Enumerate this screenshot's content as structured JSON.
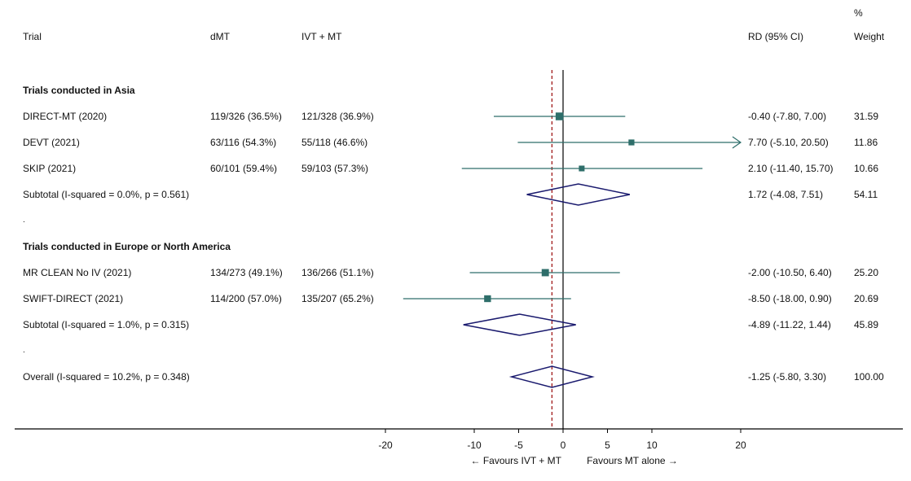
{
  "headers": {
    "trial": "Trial",
    "dmt": "dMT",
    "ivt": "IVT + MT",
    "rd": "RD (95% CI)",
    "pct": "%",
    "weight": "Weight"
  },
  "groups": [
    {
      "title": "Trials conducted in Asia",
      "rows": [
        {
          "trial": "DIRECT-MT (2020)",
          "dmt": "119/326 (36.5%)",
          "ivt": "121/328 (36.9%)",
          "rd_text": "-0.40 (-7.80, 7.00)",
          "weight_text": "31.59"
        },
        {
          "trial": "DEVT (2021)",
          "dmt": "63/116 (54.3%)",
          "ivt": "55/118 (46.6%)",
          "rd_text": "7.70 (-5.10, 20.50)",
          "weight_text": "11.86"
        },
        {
          "trial": "SKIP (2021)",
          "dmt": "60/101 (59.4%)",
          "ivt": "59/103 (57.3%)",
          "rd_text": "2.10 (-11.40, 15.70)",
          "weight_text": "10.66"
        }
      ],
      "subtotal": {
        "label": "Subtotal  (I-squared = 0.0%, p = 0.561)",
        "rd_text": "1.72 (-4.08, 7.51)",
        "weight_text": "54.11"
      },
      "dot": "."
    },
    {
      "title": "Trials conducted in Europe or North America",
      "rows": [
        {
          "trial": "MR CLEAN No IV (2021)",
          "dmt": "134/273 (49.1%)",
          "ivt": "136/266 (51.1%)",
          "rd_text": "-2.00 (-10.50, 6.40)",
          "weight_text": "25.20"
        },
        {
          "trial": "SWIFT-DIRECT (2021)",
          "dmt": "114/200 (57.0%)",
          "ivt": "135/207 (65.2%)",
          "rd_text": "-8.50 (-18.00, 0.90)",
          "weight_text": "20.69"
        }
      ],
      "subtotal": {
        "label": "Subtotal  (I-squared = 1.0%, p = 0.315)",
        "rd_text": "-4.89 (-11.22, 1.44)",
        "weight_text": "45.89"
      },
      "dot": "."
    }
  ],
  "overall": {
    "label": "Overall  (I-squared = 10.2%, p = 0.348)",
    "rd_text": "-1.25 (-5.80, 3.30)",
    "weight_text": "100.00"
  },
  "axis": {
    "ticks": [
      "-20",
      "-10",
      "-5",
      "0",
      "5",
      "10",
      "20"
    ],
    "favours_left": "← Favours IVT + MT",
    "favours_right": "Favours MT alone →"
  },
  "colors": {
    "marker": "#2e6e6a",
    "diamond": "#1a1a6e",
    "refline": "#a01818",
    "null_line": "#000000"
  },
  "chart_data": {
    "type": "forest",
    "xlim": [
      -20,
      20
    ],
    "x_ticks": [
      -20,
      -10,
      -5,
      0,
      5,
      10,
      20
    ],
    "null_value": 0,
    "overall_reference": -1.25,
    "studies": [
      {
        "name": "DIRECT-MT (2020)",
        "estimate": -0.4,
        "lower": -7.8,
        "upper": 7.0,
        "weight": 31.59
      },
      {
        "name": "DEVT (2021)",
        "estimate": 7.7,
        "lower": -5.1,
        "upper": 20.5,
        "weight": 11.86
      },
      {
        "name": "SKIP (2021)",
        "estimate": 2.1,
        "lower": -11.4,
        "upper": 15.7,
        "weight": 10.66
      },
      {
        "name": "MR CLEAN No IV (2021)",
        "estimate": -2.0,
        "lower": -10.5,
        "upper": 6.4,
        "weight": 25.2
      },
      {
        "name": "SWIFT-DIRECT (2021)",
        "estimate": -8.5,
        "lower": -18.0,
        "upper": 0.9,
        "weight": 20.69
      }
    ],
    "subtotals": [
      {
        "name": "Trials conducted in Asia",
        "estimate": 1.72,
        "lower": -4.08,
        "upper": 7.51,
        "weight": 54.11
      },
      {
        "name": "Trials conducted in Europe or North America",
        "estimate": -4.89,
        "lower": -11.22,
        "upper": 1.44,
        "weight": 45.89
      }
    ],
    "overall": {
      "estimate": -1.25,
      "lower": -5.8,
      "upper": 3.3,
      "weight": 100.0
    }
  }
}
